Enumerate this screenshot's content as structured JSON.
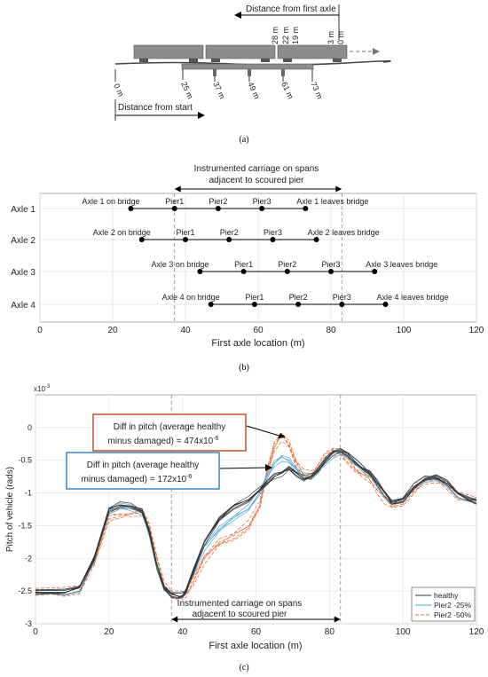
{
  "panel_a": {
    "caption": "(a)",
    "distance_from_first_axle": "Distance from first axle",
    "distance_from_start": "Distance from start",
    "axle_offsets": [
      "28 m",
      "22 m",
      "19 m",
      "3 m",
      "0 m"
    ],
    "bridge_positions": [
      "0 m",
      "25 m",
      "37 m",
      "49 m",
      "61 m",
      "73 m"
    ],
    "colors": {
      "carriage": "#8c8c8c",
      "bridge": "#8c8c8c"
    }
  },
  "panel_b": {
    "caption": "(b)",
    "annotation": [
      "Instrumented carriage on spans",
      "adjacent to scoured pier"
    ]
  },
  "panel_c": {
    "caption": "(c)",
    "exponent": "x10",
    "exponent_power": "-3",
    "callout_red": {
      "line1": "Diff in pitch (average healthy",
      "line2": "minus damaged) = 474x10",
      "power": "-6"
    },
    "callout_blue": {
      "line1": "Diff in pitch (average healthy",
      "line2": "minus damaged) = 172x10",
      "power": "-6"
    },
    "annotation": [
      "Instrumented carriage on spans",
      "adjacent to scoured pier"
    ],
    "colors": {
      "healthy": "#333333",
      "pier2_25": "#4fa8d8",
      "pier2_50": "#e8703a",
      "red_box": "#c0532a",
      "blue_box": "#3a86c4"
    }
  },
  "chart_data": [
    {
      "type": "scatter",
      "title": "",
      "xlabel": "First axle location (m)",
      "ylabel": "",
      "xlim": [
        0,
        120
      ],
      "x_ticks": [
        0,
        20,
        40,
        60,
        80,
        100,
        120
      ],
      "categories": [
        "Axle 1",
        "Axle 2",
        "Axle 3",
        "Axle 4"
      ],
      "marker_lines": [
        37,
        83
      ],
      "series": [
        {
          "name": "Axle 1",
          "x": [
            25,
            37,
            49,
            61,
            73
          ],
          "labels": [
            "Axle 1 on bridge",
            "Pier1",
            "Pier2",
            "Pier3",
            "Axle 1 leaves bridge"
          ]
        },
        {
          "name": "Axle 2",
          "x": [
            28,
            40,
            52,
            64,
            76
          ],
          "labels": [
            "Axle 2 on bridge",
            "Pier1",
            "Pier2",
            "Pier3",
            "Axle 2 leaves bridge"
          ]
        },
        {
          "name": "Axle 3",
          "x": [
            44,
            56,
            68,
            80,
            92
          ],
          "labels": [
            "Axle 3 on bridge",
            "Pier1",
            "Pier2",
            "Pier3",
            "Axle 3 leaves bridge"
          ]
        },
        {
          "name": "Axle 4",
          "x": [
            47,
            59,
            71,
            83,
            95
          ],
          "labels": [
            "Axle 4 on bridge",
            "Pier1",
            "Pier2",
            "Pier3",
            "Axle 4 leaves bridge"
          ]
        }
      ],
      "grid": true
    },
    {
      "type": "line",
      "title": "",
      "xlabel": "First axle location (m)",
      "ylabel": "Pitch of vehicle (rads)",
      "xlim": [
        0,
        120
      ],
      "ylim": [
        -3,
        0.5
      ],
      "x_ticks": [
        0,
        20,
        40,
        60,
        80,
        100,
        120
      ],
      "y_ticks": [
        -3,
        -2.5,
        -2,
        -1.5,
        -1,
        -0.5,
        0
      ],
      "y_scale_note": "x10^-3",
      "marker_lines": [
        37,
        83
      ],
      "legend_position": "bottom-right",
      "x": [
        0,
        8,
        12,
        16,
        20,
        23,
        26,
        29,
        31,
        33,
        35,
        37,
        39,
        40,
        41,
        43,
        46,
        50,
        54,
        58,
        61,
        63,
        65,
        67,
        69,
        71,
        73,
        75,
        77,
        79,
        81,
        83,
        85,
        87,
        89,
        91,
        93,
        95,
        97,
        100,
        103,
        106,
        109,
        112,
        115,
        118,
        120
      ],
      "series": [
        {
          "name": "healthy",
          "values": [
            -2.52,
            -2.52,
            -2.45,
            -2.0,
            -1.25,
            -1.18,
            -1.2,
            -1.28,
            -1.6,
            -2.1,
            -2.45,
            -2.55,
            -2.58,
            -2.57,
            -2.5,
            -2.2,
            -1.75,
            -1.4,
            -1.2,
            -1.1,
            -0.95,
            -0.85,
            -0.75,
            -0.7,
            -0.62,
            -0.7,
            -0.78,
            -0.75,
            -0.65,
            -0.5,
            -0.38,
            -0.35,
            -0.4,
            -0.52,
            -0.62,
            -0.7,
            -0.85,
            -1.0,
            -1.15,
            -1.1,
            -0.9,
            -0.78,
            -0.76,
            -0.85,
            -1.02,
            -1.1,
            -1.12
          ]
        },
        {
          "name": "Pier2 -25%",
          "values": [
            -2.52,
            -2.52,
            -2.45,
            -2.0,
            -1.28,
            -1.22,
            -1.24,
            -1.3,
            -1.62,
            -2.1,
            -2.46,
            -2.55,
            -2.58,
            -2.57,
            -2.5,
            -2.2,
            -1.82,
            -1.55,
            -1.38,
            -1.24,
            -1.0,
            -0.75,
            -0.55,
            -0.45,
            -0.5,
            -0.65,
            -0.76,
            -0.76,
            -0.66,
            -0.52,
            -0.4,
            -0.38,
            -0.44,
            -0.55,
            -0.64,
            -0.72,
            -0.86,
            -1.0,
            -1.15,
            -1.1,
            -0.92,
            -0.8,
            -0.78,
            -0.86,
            -1.02,
            -1.1,
            -1.12
          ]
        },
        {
          "name": "Pier2 -50%",
          "values": [
            -2.52,
            -2.52,
            -2.45,
            -2.05,
            -1.35,
            -1.32,
            -1.32,
            -1.3,
            -1.55,
            -2.0,
            -2.4,
            -2.53,
            -2.58,
            -2.58,
            -2.55,
            -2.35,
            -2.0,
            -1.75,
            -1.65,
            -1.5,
            -1.2,
            -0.7,
            -0.3,
            -0.12,
            -0.25,
            -0.55,
            -0.72,
            -0.74,
            -0.62,
            -0.45,
            -0.35,
            -0.38,
            -0.48,
            -0.62,
            -0.72,
            -0.8,
            -0.95,
            -1.08,
            -1.18,
            -1.12,
            -0.95,
            -0.82,
            -0.8,
            -0.88,
            -1.02,
            -1.08,
            -1.1
          ]
        }
      ],
      "grid": true
    }
  ]
}
